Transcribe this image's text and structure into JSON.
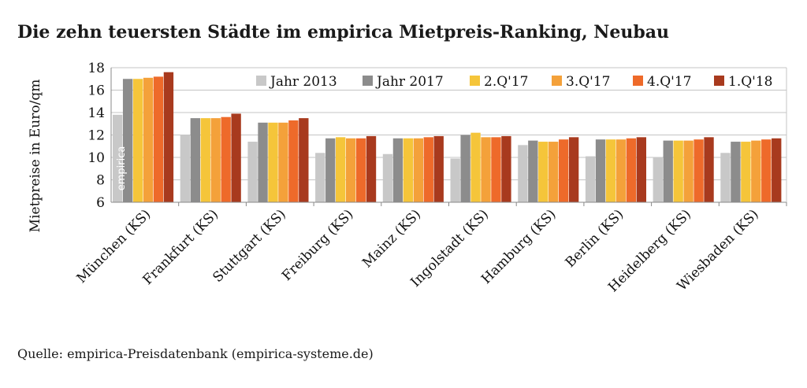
{
  "title": "Die zehn teuersten Städte im empirica Mietpreis-Ranking, Neubau",
  "source": "Quelle: empirica-Preisdatenbank (empirica-systeme.de)",
  "watermark": "empirica",
  "chart_data": {
    "type": "bar",
    "title": "Die zehn teuersten Städte im empirica Mietpreis-Ranking, Neubau",
    "xlabel": "",
    "ylabel": "Mietpreise in Euro/qm",
    "ylim": [
      6,
      18
    ],
    "yticks": [
      6,
      8,
      10,
      12,
      14,
      16,
      18
    ],
    "grid": true,
    "legend": "top-right",
    "categories": [
      "München (KS)",
      "Frankfurt (KS)",
      "Stuttgart (KS)",
      "Freiburg (KS)",
      "Mainz (KS)",
      "Ingolstadt (KS)",
      "Hamburg (KS)",
      "Berlin (KS)",
      "Heidelberg (KS)",
      "Wiesbaden (KS)"
    ],
    "series": [
      {
        "name": "Jahr 2013",
        "color": "#c8c8c8",
        "values": [
          13.8,
          12.0,
          11.4,
          10.4,
          10.3,
          9.9,
          11.1,
          10.1,
          10.0,
          10.4
        ]
      },
      {
        "name": "Jahr 2017",
        "color": "#8c8c8c",
        "values": [
          17.0,
          13.5,
          13.1,
          11.7,
          11.7,
          12.0,
          11.5,
          11.6,
          11.5,
          11.4
        ]
      },
      {
        "name": "2.Q'17",
        "color": "#f5c53a",
        "values": [
          17.0,
          13.5,
          13.1,
          11.8,
          11.7,
          12.2,
          11.4,
          11.6,
          11.5,
          11.4
        ]
      },
      {
        "name": "3.Q'17",
        "color": "#f4a13a",
        "values": [
          17.1,
          13.5,
          13.1,
          11.7,
          11.7,
          11.8,
          11.4,
          11.6,
          11.5,
          11.5
        ]
      },
      {
        "name": "4.Q'17",
        "color": "#ee6a2a",
        "values": [
          17.2,
          13.6,
          13.3,
          11.7,
          11.8,
          11.8,
          11.6,
          11.7,
          11.6,
          11.6
        ]
      },
      {
        "name": "1.Q'18",
        "color": "#a83a1e",
        "values": [
          17.6,
          13.9,
          13.5,
          11.9,
          11.9,
          11.9,
          11.8,
          11.8,
          11.8,
          11.7
        ]
      }
    ]
  }
}
